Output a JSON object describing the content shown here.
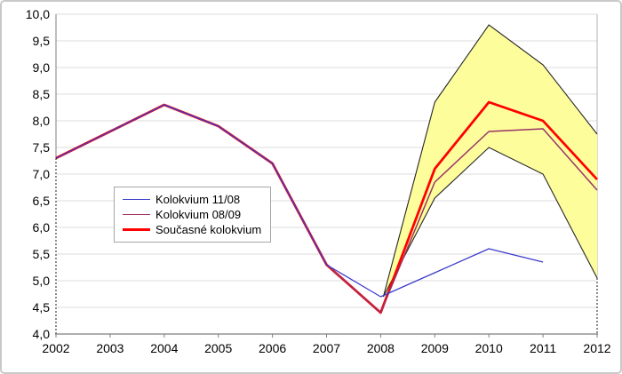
{
  "chart_data": {
    "type": "line",
    "title": "",
    "xlabel": "",
    "ylabel": "",
    "xlim": [
      2002,
      2012
    ],
    "ylim": [
      4.0,
      10.0
    ],
    "grid": "horizontal-only",
    "legend_position": "inside-middle-left",
    "x_ticks": [
      2002,
      2003,
      2004,
      2005,
      2006,
      2007,
      2008,
      2009,
      2010,
      2011,
      2012
    ],
    "y_ticks": [
      {
        "value": 10.0,
        "label": "10,0"
      },
      {
        "value": 9.5,
        "label": "9,5"
      },
      {
        "value": 9.0,
        "label": "9,0"
      },
      {
        "value": 8.5,
        "label": "8,5"
      },
      {
        "value": 8.0,
        "label": "8,0"
      },
      {
        "value": 7.5,
        "label": "7,5"
      },
      {
        "value": 7.0,
        "label": "7,0"
      },
      {
        "value": 6.5,
        "label": "6,5"
      },
      {
        "value": 6.0,
        "label": "6,0"
      },
      {
        "value": 5.5,
        "label": "5,5"
      },
      {
        "value": 5.0,
        "label": "5,0"
      },
      {
        "value": 4.5,
        "label": "4,5"
      },
      {
        "value": 4.0,
        "label": "4,0"
      }
    ],
    "series": [
      {
        "name": "Kolokvium 11/08",
        "color": "#3b3bcc",
        "width": 1.25,
        "x": [
          2002,
          2003,
          2004,
          2005,
          2006,
          2007,
          2008,
          2009,
          2010,
          2011
        ],
        "values": [
          7.3,
          7.8,
          8.3,
          7.9,
          7.2,
          5.3,
          4.7,
          5.15,
          5.6,
          5.35
        ]
      },
      {
        "name": "Kolokvium 08/09",
        "color": "#993366",
        "width": 1.5,
        "x": [
          2002,
          2003,
          2004,
          2005,
          2006,
          2007,
          2008,
          2009,
          2010,
          2011,
          2012
        ],
        "values": [
          7.3,
          7.8,
          8.3,
          7.9,
          7.2,
          5.3,
          4.4,
          6.85,
          7.8,
          7.85,
          6.7
        ]
      },
      {
        "name": "Současné kolokvium",
        "color": "#ff0000",
        "width": 2.75,
        "x": [
          2002,
          2003,
          2004,
          2005,
          2006,
          2007,
          2008,
          2009,
          2010,
          2011,
          2012
        ],
        "values": [
          7.3,
          7.8,
          8.3,
          7.9,
          7.2,
          5.3,
          4.4,
          7.1,
          8.35,
          8.0,
          6.9
        ]
      }
    ],
    "band": {
      "name": "forecast-uncertainty-band",
      "fill": "#fdfd9c",
      "border_color": "#262626",
      "x": [
        2008.05,
        2009,
        2010,
        2011,
        2012
      ],
      "upper": [
        4.7,
        8.35,
        9.8,
        9.05,
        7.75
      ],
      "lower": [
        4.7,
        6.55,
        7.5,
        7.0,
        5.05
      ]
    },
    "style_colors": {
      "gridline": "#dcdcdc",
      "axis": "#7f7f7f",
      "right_border": "#b3b3b3",
      "dashed_guide": "#1a1a1a"
    }
  }
}
